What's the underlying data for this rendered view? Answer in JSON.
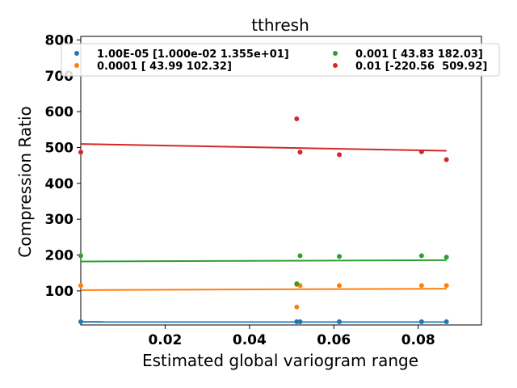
{
  "chart_data": {
    "type": "scatter",
    "title": "tthresh",
    "xlabel": "Estimated global variogram range",
    "ylabel": "Compression Ratio",
    "xlim": [
      0.0,
      0.095
    ],
    "ylim": [
      5,
      810
    ],
    "xticks": [
      0.02,
      0.04,
      0.06,
      0.08
    ],
    "xtick_labels": [
      "0.02",
      "0.04",
      "0.06",
      "0.08"
    ],
    "yticks": [
      100,
      200,
      300,
      400,
      500,
      600,
      700,
      800
    ],
    "ytick_labels": [
      "100",
      "200",
      "300",
      "400",
      "500",
      "600",
      "700",
      "800"
    ],
    "legend_position": "top",
    "series": [
      {
        "name": "1.00E-05 [1.000e-02 1.355e+01]",
        "color": "#1f77b4",
        "points": [
          [
            0.0,
            14
          ],
          [
            0.0512,
            14
          ],
          [
            0.052,
            14
          ],
          [
            0.0613,
            14
          ],
          [
            0.0808,
            14
          ],
          [
            0.0867,
            14
          ]
        ],
        "fit": [
          [
            0.0,
            13.6
          ],
          [
            0.0867,
            13.5
          ]
        ]
      },
      {
        "name": "0.0001 [ 43.99 102.32]",
        "color": "#ff7f0e",
        "points": [
          [
            0.0,
            115
          ],
          [
            0.0512,
            55
          ],
          [
            0.0512,
            118
          ],
          [
            0.052,
            115
          ],
          [
            0.0613,
            115
          ],
          [
            0.0808,
            115
          ],
          [
            0.0867,
            115
          ]
        ],
        "fit": [
          [
            0.0,
            102.3
          ],
          [
            0.0867,
            106.1
          ]
        ]
      },
      {
        "name": "0.001 [ 43.83 182.03]",
        "color": "#2ca02c",
        "points": [
          [
            0.0,
            198
          ],
          [
            0.0512,
            120
          ],
          [
            0.052,
            198
          ],
          [
            0.0613,
            196
          ],
          [
            0.0808,
            198
          ],
          [
            0.0867,
            194
          ]
        ],
        "fit": [
          [
            0.0,
            182.0
          ],
          [
            0.0867,
            185.8
          ]
        ]
      },
      {
        "name": "0.01 [-220.56  509.92]",
        "color": "#d62728",
        "points": [
          [
            0.0,
            487
          ],
          [
            0.0512,
            580
          ],
          [
            0.052,
            487
          ],
          [
            0.0613,
            480
          ],
          [
            0.0808,
            488
          ],
          [
            0.0867,
            466
          ]
        ],
        "fit": [
          [
            0.0,
            509.9
          ],
          [
            0.0867,
            490.8
          ]
        ]
      }
    ]
  }
}
